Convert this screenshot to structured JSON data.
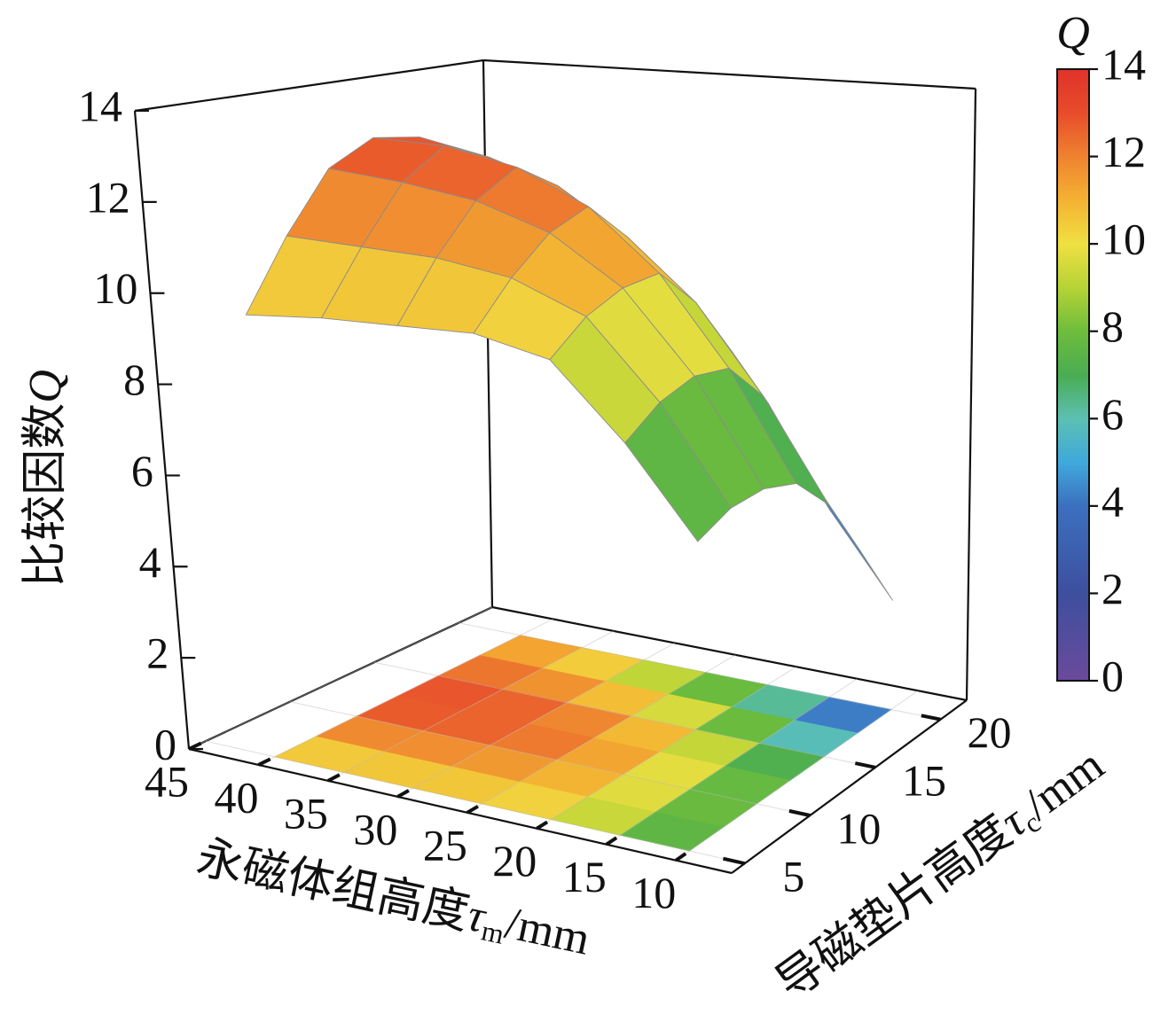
{
  "chart_data": {
    "type": "surface3d",
    "x": [
      10,
      15,
      20,
      25,
      30,
      35,
      40
    ],
    "y": [
      5,
      7.5,
      10,
      12.5,
      15,
      17.5,
      20
    ],
    "z": [
      [
        6.5,
        8.3,
        9.8,
        10.1,
        10.0,
        9.9,
        9.7
      ],
      [
        6.8,
        8.8,
        10.4,
        11.0,
        11.2,
        11.2,
        11.2
      ],
      [
        6.8,
        9.0,
        10.7,
        11.7,
        12.2,
        12.4,
        12.5
      ],
      [
        6.5,
        8.8,
        10.7,
        12.0,
        12.7,
        13.0,
        13.0
      ],
      [
        5.6,
        7.8,
        9.7,
        11.0,
        12.0,
        12.5,
        12.8
      ],
      [
        4.1,
        6.0,
        8.2,
        9.3,
        10.7,
        11.5,
        12.1
      ],
      [
        2.5,
        4.3,
        6.6,
        7.5,
        9.2,
        10.3,
        11.3
      ]
    ],
    "xlim": [
      45,
      6
    ],
    "xticks": [
      45,
      40,
      35,
      30,
      25,
      20,
      15,
      10
    ],
    "ylim": [
      4,
      22
    ],
    "yticks": [
      5,
      10,
      15,
      20
    ],
    "zlim": [
      0,
      14
    ],
    "zticks": [
      0,
      2,
      4,
      6,
      8,
      10,
      12,
      14
    ],
    "xlabel": {
      "text": "永磁体组高度",
      "symbol": "τ",
      "sub": "m",
      "unit": "/mm"
    },
    "ylabel": {
      "text": "导磁垫片高度",
      "symbol": "τ",
      "sub": "c",
      "unit": "/mm"
    },
    "zlabel": {
      "text": "比较因数",
      "symbol": "Q"
    },
    "colorbar": {
      "title": "Q",
      "lim": [
        0,
        14
      ],
      "ticks": [
        0,
        2,
        4,
        6,
        8,
        10,
        12,
        14
      ]
    },
    "colormap": [
      {
        "value": 0,
        "color": "#6b4a9c"
      },
      {
        "value": 2,
        "color": "#3d4f9e"
      },
      {
        "value": 4,
        "color": "#3c70bf"
      },
      {
        "value": 5,
        "color": "#3fa9dc"
      },
      {
        "value": 6,
        "color": "#5cc0b2"
      },
      {
        "value": 7,
        "color": "#4aac52"
      },
      {
        "value": 8,
        "color": "#6ebd3c"
      },
      {
        "value": 9,
        "color": "#b6d336"
      },
      {
        "value": 10,
        "color": "#f0e042"
      },
      {
        "value": 11,
        "color": "#f4b232"
      },
      {
        "value": 12,
        "color": "#ef8230"
      },
      {
        "value": 13,
        "color": "#e84c2b"
      },
      {
        "value": 14,
        "color": "#e0322a"
      }
    ],
    "mesh_color": "#8c8c8c",
    "floor_projection": true
  }
}
